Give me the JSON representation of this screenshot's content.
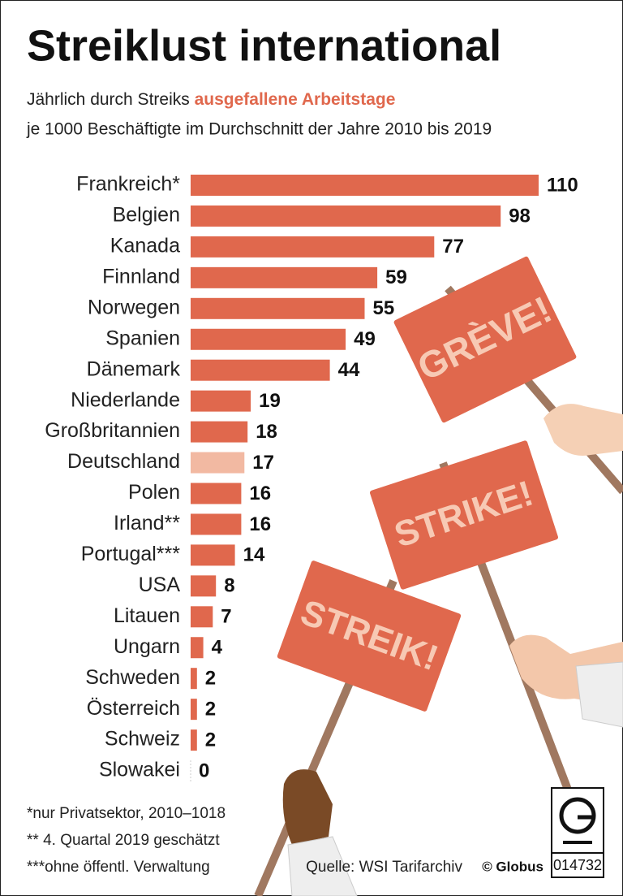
{
  "chart_data": {
    "type": "bar",
    "title": "Streiklust international",
    "subtitle": [
      "Jährlich durch Streiks",
      "ausgefallene Arbeitstage",
      "je 1000 Beschäftigte im Durchschnitt der Jahre 2010 bis 2019"
    ],
    "categories": [
      "Frankreich*",
      "Belgien",
      "Kanada",
      "Finnland",
      "Norwegen",
      "Spanien",
      "Dänemark",
      "Niederlande",
      "Großbritannien",
      "Deutschland",
      "Polen",
      "Irland**",
      "Portugal***",
      "USA",
      "Litauen",
      "Ungarn",
      "Schweden",
      "Österreich",
      "Schweiz",
      "Slowakei"
    ],
    "values": [
      110,
      98,
      77,
      59,
      55,
      49,
      44,
      19,
      18,
      17,
      16,
      16,
      14,
      8,
      7,
      4,
      2,
      2,
      2,
      0
    ],
    "bar_colors": [
      "#e0684d",
      "#e0684d",
      "#e0684d",
      "#e0684d",
      "#e0684d",
      "#e0684d",
      "#e0684d",
      "#e0684d",
      "#e0684d",
      "#f2b9a2",
      "#e0684d",
      "#e0684d",
      "#e0684d",
      "#e0684d",
      "#e0684d",
      "#e0684d",
      "#e0684d",
      "#e0684d",
      "#e0684d",
      "#e0684d"
    ],
    "highlight_color": "#e0684d",
    "footnotes": [
      "*nur Privatsektor, 2010–1018",
      "** 4. Quartal 2019 geschätzt",
      "***ohne öffentl. Verwaltung"
    ],
    "source": "Quelle: WSI Tarifarchiv",
    "publisher": "© Globus",
    "code": "014732",
    "sign_texts": [
      "GRÈVE!",
      "STRIKE!",
      "STREIK!"
    ]
  }
}
